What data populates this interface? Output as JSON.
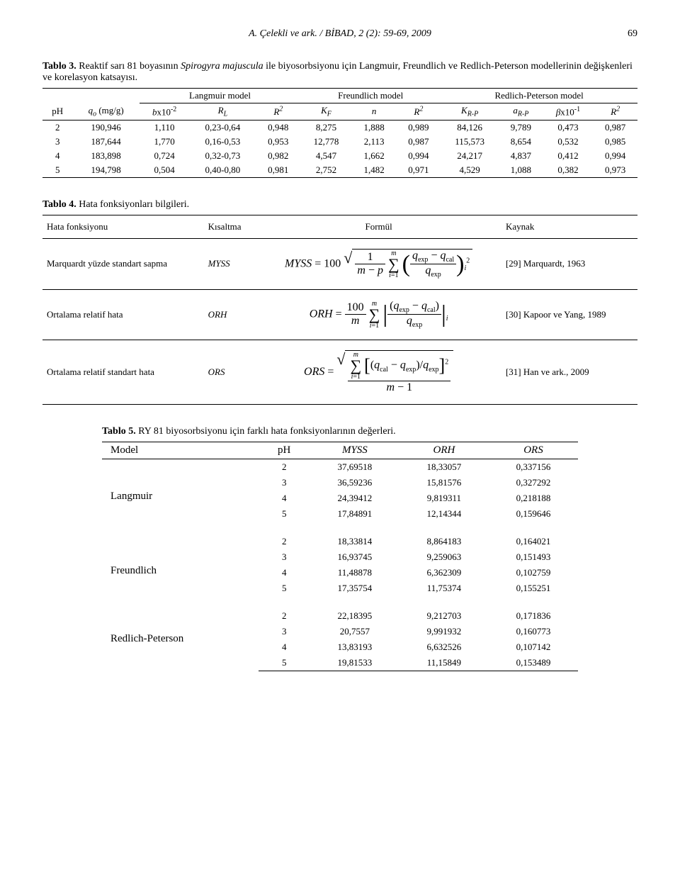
{
  "header": {
    "running_title": "A. Çelekli ve ark. / BİBAD, 2 (2): 59-69, 2009",
    "page_number": "69"
  },
  "table3": {
    "label": "Tablo 3.",
    "caption": "Reaktif sarı 81 boyasının Spirogyra majuscula ile biyosorbsiyonu için Langmuir, Freundlich ve Redlich-Peterson modellerinin değişkenleri ve korelasyon katsayısı.",
    "group_headers": [
      "Langmuir model",
      "Freundlich model",
      "Redlich-Peterson model"
    ],
    "columns": [
      "pH",
      "qₒ (mg/g)",
      "bx10⁻²",
      "R_L",
      "R²",
      "K_F",
      "n",
      "R²",
      "K_{R-P}",
      "a_{R-P}",
      "βx10⁻¹",
      "R²"
    ],
    "rows": [
      [
        "2",
        "190,946",
        "1,110",
        "0,23-0,64",
        "0,948",
        "8,275",
        "1,888",
        "0,989",
        "84,126",
        "9,789",
        "0,473",
        "0,987"
      ],
      [
        "3",
        "187,644",
        "1,770",
        "0,16-0,53",
        "0,953",
        "12,778",
        "2,113",
        "0,987",
        "115,573",
        "8,654",
        "0,532",
        "0,985"
      ],
      [
        "4",
        "183,898",
        "0,724",
        "0,32-0,73",
        "0,982",
        "4,547",
        "1,662",
        "0,994",
        "24,217",
        "4,837",
        "0,412",
        "0,994"
      ],
      [
        "5",
        "194,798",
        "0,504",
        "0,40-0,80",
        "0,981",
        "2,752",
        "1,482",
        "0,971",
        "4,529",
        "1,088",
        "0,382",
        "0,973"
      ]
    ]
  },
  "table4": {
    "label": "Tablo 4.",
    "caption": "Hata fonksiyonları bilgileri.",
    "columns": [
      "Hata fonksiyonu",
      "Kısaltma",
      "Formül",
      "Kaynak"
    ],
    "rows": [
      {
        "name": "Marquardt yüzde standart sapma",
        "abbr": "MYSS",
        "ref": "[29] Marquardt, 1963"
      },
      {
        "name": "Ortalama relatif hata",
        "abbr": "ORH",
        "ref": "[30] Kapoor ve Yang, 1989"
      },
      {
        "name": "Ortalama relatif standart hata",
        "abbr": "ORS",
        "ref": "[31] Han ve ark., 2009"
      }
    ]
  },
  "table5": {
    "label": "Tablo 5.",
    "caption": "RY 81 biyosorbsiyonu için farklı hata fonksiyonlarının değerleri.",
    "columns": [
      "Model",
      "pH",
      "MYSS",
      "ORH",
      "ORS"
    ],
    "sections": [
      {
        "model": "Langmuir",
        "rows": [
          [
            "2",
            "37,69518",
            "18,33057",
            "0,337156"
          ],
          [
            "3",
            "36,59236",
            "15,81576",
            "0,327292"
          ],
          [
            "4",
            "24,39412",
            "9,819311",
            "0,218188"
          ],
          [
            "5",
            "17,84891",
            "12,14344",
            "0,159646"
          ]
        ]
      },
      {
        "model": "Freundlich",
        "rows": [
          [
            "2",
            "18,33814",
            "8,864183",
            "0,164021"
          ],
          [
            "3",
            "16,93745",
            "9,259063",
            "0,151493"
          ],
          [
            "4",
            "11,48878",
            "6,362309",
            "0,102759"
          ],
          [
            "5",
            "17,35754",
            "11,75374",
            "0,155251"
          ]
        ]
      },
      {
        "model": "Redlich-Peterson",
        "rows": [
          [
            "2",
            "22,18395",
            "9,212703",
            "0,171836"
          ],
          [
            "3",
            "20,7557",
            "9,991932",
            "0,160773"
          ],
          [
            "4",
            "13,83193",
            "6,632526",
            "0,107142"
          ],
          [
            "5",
            "19,81533",
            "11,15849",
            "0,153489"
          ]
        ]
      }
    ]
  }
}
